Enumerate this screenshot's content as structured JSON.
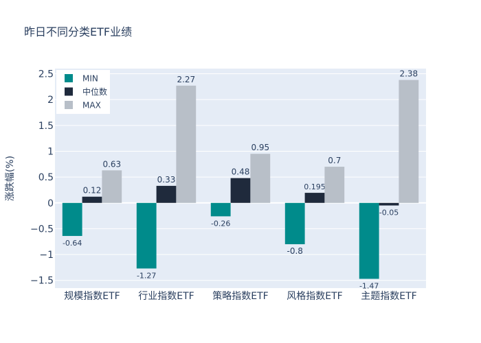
{
  "chart_data": {
    "type": "bar",
    "title": "昨日不同分类ETF业绩",
    "xlabel": "",
    "ylabel": "涨跌幅(%)",
    "ylim": [
      -1.65,
      2.6
    ],
    "yticks": [
      -1.5,
      -1,
      -0.5,
      0,
      0.5,
      1,
      1.5,
      2,
      2.5
    ],
    "ytick_labels": [
      "−1.5",
      "−1",
      "−0.5",
      "0",
      "0.5",
      "1",
      "1.5",
      "2",
      "2.5"
    ],
    "categories": [
      "规模指数ETF",
      "行业指数ETF",
      "策略指数ETF",
      "风格指数ETF",
      "主题指数ETF"
    ],
    "series": [
      {
        "name": "MIN",
        "color": "#008b8b",
        "values": [
          -0.64,
          -1.27,
          -0.26,
          -0.8,
          -1.47
        ]
      },
      {
        "name": "中位数",
        "color": "#1f2a3c",
        "values": [
          0.12,
          0.33,
          0.48,
          0.195,
          -0.05
        ]
      },
      {
        "name": "MAX",
        "color": "#b8bfc8",
        "values": [
          0.63,
          2.27,
          0.95,
          0.7,
          2.38
        ]
      }
    ],
    "grid": true,
    "legend": "top-left",
    "background": "#e5ecf6"
  }
}
